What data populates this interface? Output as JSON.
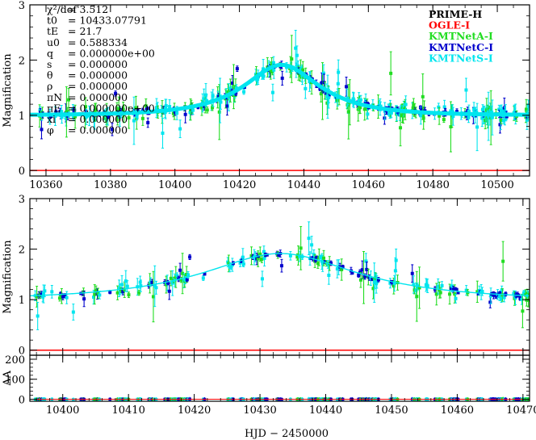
{
  "chart_data": [
    {
      "type": "scatter",
      "panel": "top",
      "xlabel": "",
      "ylabel": "Magnification",
      "xlim": [
        10355,
        10510
      ],
      "ylim": [
        -0.1,
        3
      ],
      "xticks": [
        10360,
        10380,
        10400,
        10420,
        10440,
        10460,
        10480,
        10500
      ],
      "xtick_labels": [
        "10360",
        "10380",
        "10400",
        "10420",
        "10440",
        "10460",
        "10480",
        "10500"
      ],
      "yticks": [
        0,
        1,
        2,
        3
      ],
      "ytick_labels": [
        "0",
        "1",
        "2",
        "3"
      ],
      "baseline": 0,
      "parameters": [
        {
          "label": "χ²/dof",
          "value": "= 3.512"
        },
        {
          "label": "t0",
          "value": "= 10433.07791"
        },
        {
          "label": "tE",
          "value": "= 21.7"
        },
        {
          "label": "u0",
          "value": "= 0.588334"
        },
        {
          "label": "q",
          "value": "= 0.000000e+00"
        },
        {
          "label": "s",
          "value": "= 0.000000"
        },
        {
          "label": "θ",
          "value": "= 0.000000"
        },
        {
          "label": "ρ",
          "value": "= 0.000000"
        },
        {
          "label": "πN",
          "value": "= 0.000000"
        },
        {
          "label": "πE",
          "value": "= 0.000000e+00"
        },
        {
          "label": "xi",
          "value": "= 0.000000"
        },
        {
          "label": "φ",
          "value": "= 0.000000"
        }
      ],
      "legend": [
        "PRIME-H",
        "OGLE-I",
        "KMTNetA-I",
        "KMTNetC-I",
        "KMTNetS-I"
      ],
      "legend_colors": [
        "#000000",
        "#ff0000",
        "#22dd22",
        "#0000cc",
        "#00e5ee"
      ],
      "legend_placement": "top-right",
      "model": {
        "t0": 10433.08,
        "tE": 21.7,
        "u0": 0.588334,
        "color": "#00e5ee"
      }
    },
    {
      "type": "scatter",
      "panel": "middle",
      "xlabel": "",
      "ylabel": "Magnification",
      "xlim": [
        10395,
        10471
      ],
      "ylim": [
        -0.1,
        3
      ],
      "xticks": [
        10400,
        10410,
        10420,
        10430,
        10440,
        10450,
        10460,
        10470
      ],
      "yticks": [
        0,
        1,
        2,
        3
      ],
      "ytick_labels": [
        "0",
        "1",
        "2",
        "3"
      ],
      "baseline": 0
    },
    {
      "type": "scatter",
      "panel": "bottom",
      "xlabel": "HJD − 2450000",
      "ylabel": "ΔA",
      "xlim": [
        10395,
        10471
      ],
      "ylim": [
        -10,
        220
      ],
      "xticks": [
        10400,
        10410,
        10420,
        10430,
        10440,
        10450,
        10460,
        10470
      ],
      "xtick_labels": [
        "10400",
        "10410",
        "10420",
        "10430",
        "10440",
        "10450",
        "10460",
        "10470"
      ],
      "yticks": [
        0,
        100,
        200
      ],
      "ytick_labels": [
        "0",
        "100",
        "200"
      ],
      "residual_range": [
        -1.5,
        1.5
      ]
    }
  ],
  "series_colors": {
    "kmta": "#22dd22",
    "kmtc": "#0000cc",
    "kmts": "#00e5ee",
    "ogle": "#ff0000",
    "model": "#00e5ee",
    "baseline": "#ff0000"
  }
}
